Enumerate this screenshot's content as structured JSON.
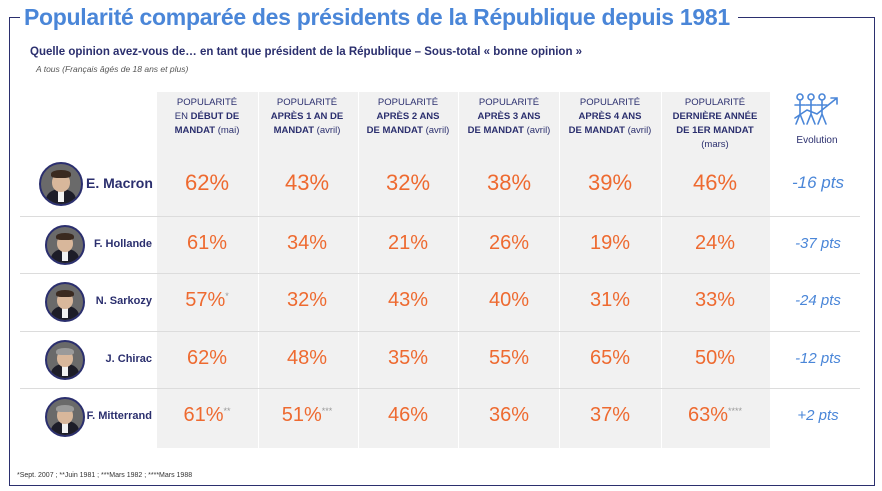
{
  "chart_data": {
    "type": "table",
    "title": "Popularité comparée des présidents de la République depuis 1981",
    "subtitle": "Quelle opinion avez-vous de… en tant que président de la République – Sous-total « bonne opinion »",
    "base": "A tous (Français âgés de 18 ans et plus)",
    "columns": [
      {
        "l1": "POPULARITÉ",
        "l2": "EN ",
        "l2b": "DÉBUT DE",
        "l3": "MANDAT",
        "l3s": " (mai)"
      },
      {
        "l1": "POPULARITÉ",
        "l2": "",
        "l2b": "APRÈS 1 AN DE",
        "l3": "MANDAT",
        "l3s": " (avril)"
      },
      {
        "l1": "POPULARITÉ",
        "l2": "",
        "l2b": "APRÈS 2 ANS",
        "l3": "DE MANDAT",
        "l3s": " (avril)"
      },
      {
        "l1": "POPULARITÉ",
        "l2": "",
        "l2b": "APRÈS 3 ANS",
        "l3": "DE MANDAT",
        "l3s": " (avril)"
      },
      {
        "l1": "POPULARITÉ",
        "l2": "",
        "l2b": "APRÈS 4 ANS",
        "l3": "DE MANDAT",
        "l3s": " (avril)"
      },
      {
        "l1": "POPULARITÉ",
        "l2": "",
        "l2b": "DERNIÈRE ANNÉE",
        "l3": "DE 1ER MANDAT",
        "l3s": " (mars)"
      }
    ],
    "evolution_label": "Evolution",
    "rows": [
      {
        "name": "E. Macron",
        "values": [
          "62%",
          "43%",
          "32%",
          "38%",
          "39%",
          "46%"
        ],
        "stars": [
          "",
          "",
          "",
          "",
          "",
          ""
        ],
        "evolution": "-16 pts"
      },
      {
        "name": "F. Hollande",
        "values": [
          "61%",
          "34%",
          "21%",
          "26%",
          "19%",
          "24%"
        ],
        "stars": [
          "",
          "",
          "",
          "",
          "",
          ""
        ],
        "evolution": "-37 pts"
      },
      {
        "name": "N. Sarkozy",
        "values": [
          "57%",
          "32%",
          "43%",
          "40%",
          "31%",
          "33%"
        ],
        "stars": [
          "*",
          "",
          "",
          "",
          "",
          ""
        ],
        "evolution": "-24 pts"
      },
      {
        "name": "J. Chirac",
        "values": [
          "62%",
          "48%",
          "35%",
          "55%",
          "65%",
          "50%"
        ],
        "stars": [
          "",
          "",
          "",
          "",
          "",
          ""
        ],
        "evolution": "-12 pts"
      },
      {
        "name": "F. Mitterrand",
        "values": [
          "61%",
          "51%",
          "46%",
          "36%",
          "37%",
          "63%"
        ],
        "stars": [
          "**",
          "***",
          "",
          "",
          "",
          "****"
        ],
        "evolution": "+2 pts"
      }
    ],
    "footnote": "*Sept. 2007 ; **Juin 1981 ; ***Mars 1982 ; ****Mars 1988",
    "colors": {
      "title": "#4a86d8",
      "navy": "#2b2f6e",
      "value": "#ee6a30",
      "evolution": "#4a86d8"
    }
  }
}
